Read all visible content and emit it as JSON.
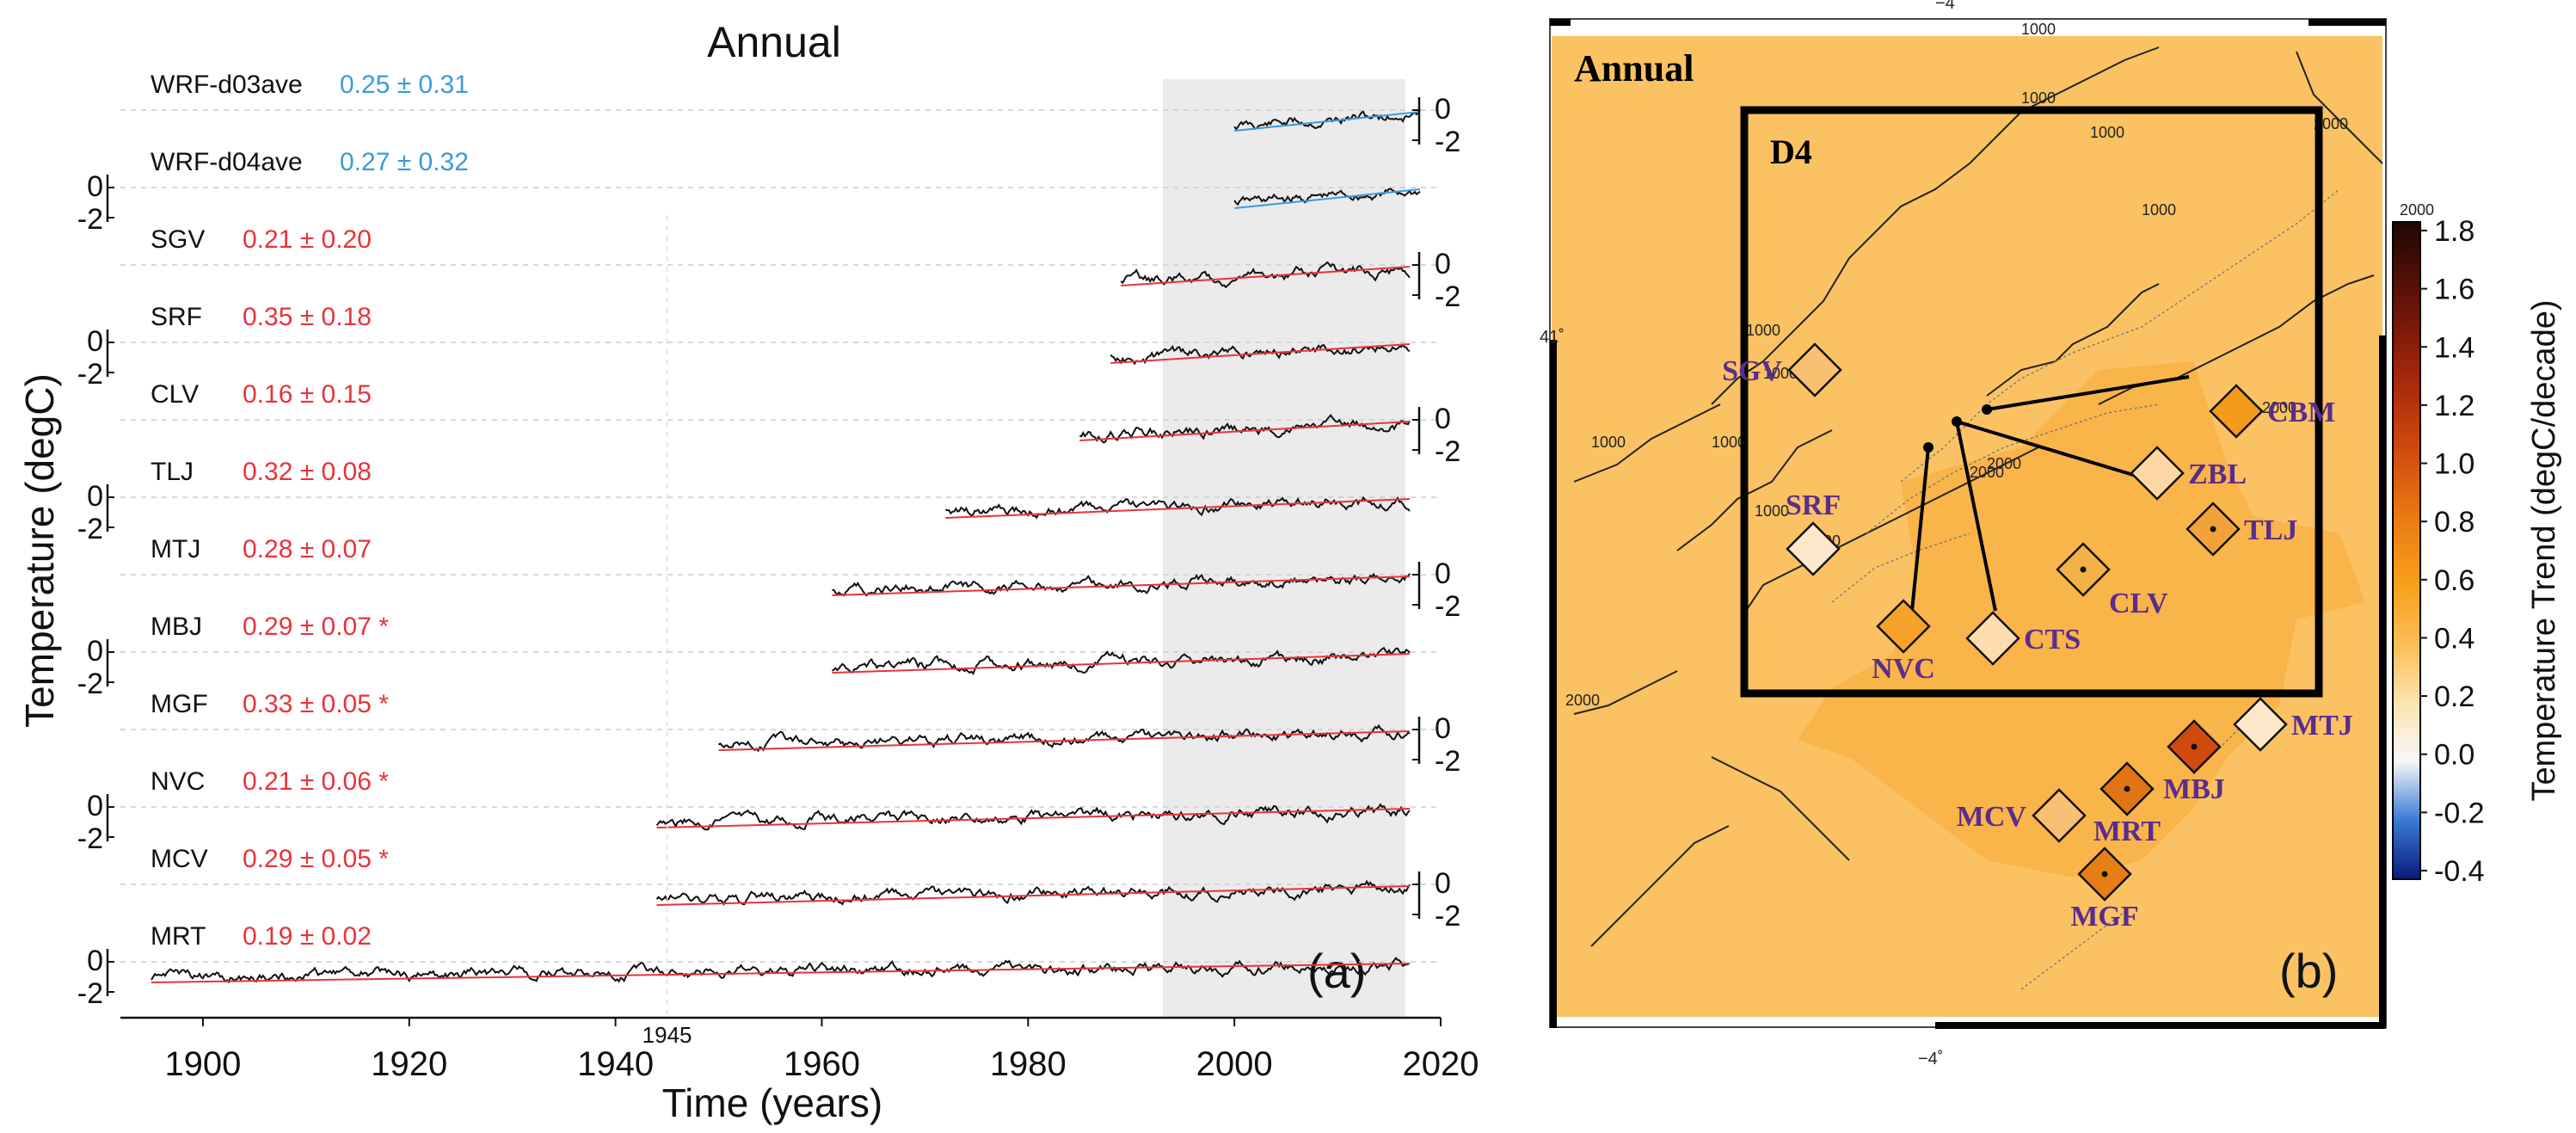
{
  "panel_a": {
    "title": "Annual",
    "panel_label": "(a)",
    "ylabel": "Temperature (degC)",
    "xlabel": "Time (years)",
    "x_ticks": [
      "1900",
      "1920",
      "1940",
      "1960",
      "1980",
      "2000",
      "2020"
    ],
    "extra_tick": "1945",
    "axis_tick_zero": "0",
    "axis_tick_minus2": "-2"
  },
  "panel_b": {
    "title": "Annual",
    "panel_label": "(b)",
    "domain_label": "D4",
    "lon_label_top": "−4˚",
    "lon_label_bottom": "−4˚",
    "lat_label": "41˚",
    "colorbar_label": "Temperature Trend (degC/decade)",
    "colorbar_ticks": [
      "1.8",
      "1.6",
      "1.4",
      "1.2",
      "1.0",
      "0.8",
      "0.6",
      "0.4",
      "0.2",
      "0.0",
      "-0.2",
      "-0.4"
    ],
    "contour_labels": [
      "1000",
      "1000",
      "1000",
      "1000",
      "1000",
      "1000",
      "1000",
      "1000",
      "1000",
      "1000",
      "2000",
      "2000",
      "2000",
      "2000",
      "2000",
      "2000"
    ],
    "stations": [
      {
        "code": "SGV",
        "trend": 0.21
      },
      {
        "code": "CBM",
        "trend": 0.6
      },
      {
        "code": "SRF",
        "trend": 0.35
      },
      {
        "code": "ZBL",
        "trend": 0.3
      },
      {
        "code": "TLJ",
        "trend": 0.32
      },
      {
        "code": "CLV",
        "trend": 0.16
      },
      {
        "code": "NVC",
        "trend": 0.21
      },
      {
        "code": "CTS",
        "trend": 0.3
      },
      {
        "code": "MTJ",
        "trend": 0.28
      },
      {
        "code": "MBJ",
        "trend": 0.29
      },
      {
        "code": "MCV",
        "trend": 0.29
      },
      {
        "code": "MRT",
        "trend": 0.19
      },
      {
        "code": "MGF",
        "trend": 0.33
      }
    ]
  },
  "chart_data": [
    {
      "type": "line",
      "title": "Annual",
      "xlabel": "Time (years)",
      "ylabel": "Temperature (degC)",
      "xlim": [
        1892,
        2020
      ],
      "shaded_period": [
        2000,
        2018
      ],
      "series": [
        {
          "name": "WRF-d03ave",
          "trend": "0.25 ± 0.31",
          "start": 2000,
          "end": 2018,
          "trend_color": "#3a9ad9",
          "tick_side": "right"
        },
        {
          "name": "WRF-d04ave",
          "trend": "0.27 ± 0.32",
          "start": 2000,
          "end": 2018,
          "trend_color": "#3a9ad9",
          "tick_side": "left"
        },
        {
          "name": "SGV",
          "trend": "0.21 ± 0.20",
          "start": 1989,
          "end": 2017,
          "trend_color": "#e8333a",
          "tick_side": "right"
        },
        {
          "name": "SRF",
          "trend": "0.35 ± 0.18",
          "start": 1988,
          "end": 2017,
          "trend_color": "#e8333a",
          "tick_side": "left"
        },
        {
          "name": "CLV",
          "trend": "0.16 ± 0.15",
          "start": 1985,
          "end": 2017,
          "trend_color": "#e8333a",
          "tick_side": "right"
        },
        {
          "name": "TLJ",
          "trend": "0.32 ± 0.08",
          "start": 1972,
          "end": 2017,
          "trend_color": "#e8333a",
          "tick_side": "left"
        },
        {
          "name": "MTJ",
          "trend": "0.28 ± 0.07",
          "start": 1961,
          "end": 2017,
          "trend_color": "#e8333a",
          "tick_side": "right"
        },
        {
          "name": "MBJ",
          "trend": "0.29 ± 0.07 *",
          "start": 1961,
          "end": 2017,
          "trend_color": "#e8333a",
          "tick_side": "left"
        },
        {
          "name": "MGF",
          "trend": "0.33 ± 0.05 *",
          "start": 1950,
          "end": 2017,
          "trend_color": "#e8333a",
          "tick_side": "right"
        },
        {
          "name": "NVC",
          "trend": "0.21 ± 0.06 *",
          "start": 1944,
          "end": 2017,
          "trend_color": "#e8333a",
          "tick_side": "left"
        },
        {
          "name": "MCV",
          "trend": "0.29 ± 0.05 *",
          "start": 1944,
          "end": 2017,
          "trend_color": "#e8333a",
          "tick_side": "right"
        },
        {
          "name": "MRT",
          "trend": "0.19 ± 0.02",
          "start": 1895,
          "end": 2017,
          "trend_color": "#e8333a",
          "tick_side": "left"
        }
      ]
    },
    {
      "type": "heatmap",
      "title": "Annual",
      "colorbar_label": "Temperature Trend (degC/decade)",
      "colorbar_range": [
        -0.4,
        1.8
      ]
    }
  ]
}
